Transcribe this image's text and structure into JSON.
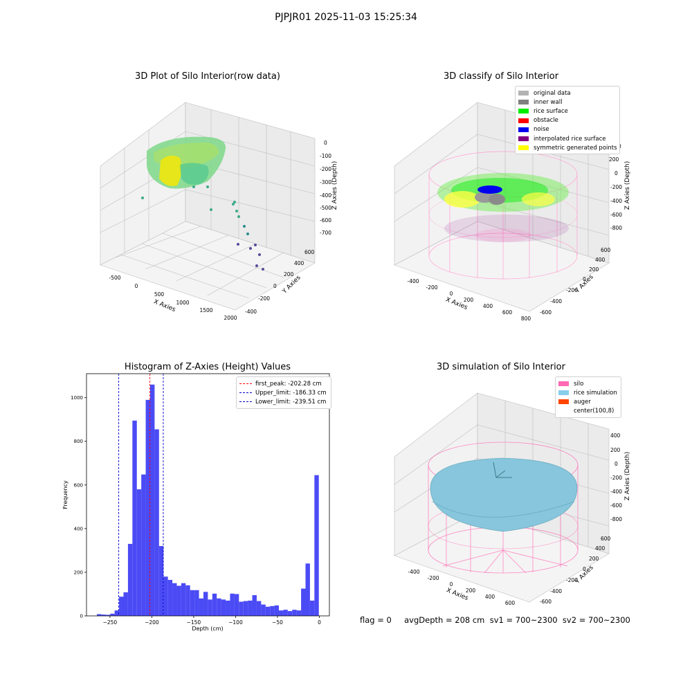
{
  "suptitle": "PJPJR01 2025-11-03 15:25:34",
  "panels": {
    "raw": {
      "title": "3D Plot of Silo Interior(row data)",
      "xlabel": "X Axies",
      "ylabel": "Y Axies",
      "zlabel": "Z Axies (Depth)",
      "xticks": [
        "-500",
        "0",
        "500",
        "1000",
        "1500",
        "2000"
      ],
      "yticks": [
        "-400",
        "-200",
        "0",
        "200",
        "400",
        "600"
      ],
      "zticks": [
        "0",
        "-100",
        "-200",
        "-300",
        "-400",
        "-500",
        "-600",
        "-700"
      ]
    },
    "classify": {
      "title": "3D classify of Silo Interior",
      "xlabel": "X Axies",
      "ylabel": "Y Axies",
      "zlabel": "Z Axies (Depth)",
      "xticks": [
        "-400",
        "-200",
        "0",
        "200",
        "400",
        "600",
        "800"
      ],
      "yticks": [
        "-600",
        "-400",
        "-200",
        "0",
        "200",
        "400",
        "600"
      ],
      "zticks": [
        "200",
        "0",
        "-200",
        "-400",
        "-600",
        "-800"
      ],
      "ztick_partial": "0",
      "legend": [
        {
          "label": "original data",
          "color": "#b3b3b3"
        },
        {
          "label": "inner wall",
          "color": "#808080"
        },
        {
          "label": "rice surface",
          "color": "#00ee00"
        },
        {
          "label": "obstacle",
          "color": "#ff0000"
        },
        {
          "label": "noise",
          "color": "#0000ee"
        },
        {
          "label": "interpolated rice surface",
          "color": "#800080"
        },
        {
          "label": "symmetric generated points",
          "color": "#ffff00"
        }
      ]
    },
    "simulation": {
      "title": "3D simulation of Silo Interior",
      "xlabel": "X Axies",
      "ylabel": "Y Axies",
      "zlabel": "Z Axies (Depth)",
      "xticks": [
        "-400",
        "-200",
        "0",
        "200",
        "400",
        "600"
      ],
      "yticks": [
        "-600",
        "-400",
        "-200",
        "0",
        "200",
        "400",
        "600"
      ],
      "zticks": [
        "400",
        "200",
        "0",
        "-200",
        "-400",
        "-600",
        "-800"
      ],
      "legend": [
        {
          "label": "silo",
          "color": "#ff69b4"
        },
        {
          "label": "rice simulation",
          "color": "#87ceeb"
        },
        {
          "label": "auger",
          "color": "#ff4500"
        },
        {
          "label": "center(100,8)",
          "color": ""
        }
      ],
      "footer": "flag = 0     avgDepth = 208 cm  sv1 = 700~2300  sv2 = 700~2300"
    }
  },
  "colors": {
    "bar": "#4b4bf5",
    "peak": "#ff0000",
    "limit": "#0000cc"
  },
  "chart_data": [
    {
      "type": "histogram",
      "title": "Histogram of Z-Axies (Height) Values",
      "xlabel": "Depth (cm)",
      "ylabel": "Frequency",
      "xlim": [
        -278,
        12
      ],
      "ylim": [
        0,
        1110
      ],
      "xticks": [
        -250,
        -200,
        -150,
        -100,
        -50,
        0
      ],
      "yticks": [
        0,
        200,
        400,
        600,
        800,
        1000
      ],
      "bin_start": -265.6,
      "bin_width": 5.3,
      "frequencies": [
        8,
        6,
        5,
        10,
        25,
        88,
        108,
        330,
        895,
        580,
        648,
        990,
        1060,
        855,
        320,
        180,
        165,
        150,
        138,
        150,
        140,
        118,
        118,
        80,
        110,
        75,
        102,
        80,
        75,
        70,
        102,
        100,
        65,
        68,
        70,
        95,
        68,
        52,
        42,
        45,
        48,
        25,
        28,
        22,
        28,
        25,
        125,
        240,
        70,
        645
      ],
      "lines": [
        {
          "label": "first_peak: -202.28 cm",
          "x": -202.28,
          "color": "#ff0000"
        },
        {
          "label": "Upper_limit: -186.33 cm",
          "x": -186.33,
          "color": "#0000cc"
        },
        {
          "label": "Lower_limit: -239.51 cm",
          "x": -239.51,
          "color": "#0000cc"
        }
      ],
      "legend_position": "top-right",
      "grid": false
    }
  ]
}
